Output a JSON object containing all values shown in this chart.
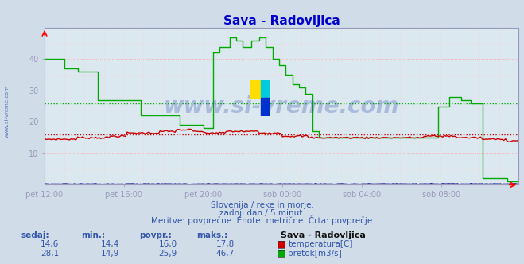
{
  "title": "Sava - Radovljica",
  "title_color": "#0000cc",
  "bg_color": "#d0dce8",
  "plot_bg_color": "#dce8f0",
  "grid_color_h": "#ffaaaa",
  "grid_color_v": "#ffcccc",
  "watermark": "www.si-vreme.com",
  "watermark_color": "#3355aa",
  "subtitle1": "Slovenija / reke in morje.",
  "subtitle2": "zadnji dan / 5 minut.",
  "subtitle3": "Meritve: povprečne  Enote: metrične  Črta: povprečje",
  "text_color": "#3355aa",
  "ylim": [
    0,
    50
  ],
  "yticks": [
    10,
    20,
    30,
    40
  ],
  "xtick_labels": [
    "pet 12:00",
    "pet 16:00",
    "pet 20:00",
    "sob 00:00",
    "sob 04:00",
    "sob 08:00"
  ],
  "x_tick_idx": [
    0,
    48,
    96,
    144,
    192,
    240
  ],
  "total_points": 288,
  "temp_avg": 16.0,
  "temp_color": "#cc0000",
  "flow_avg": 25.9,
  "flow_color": "#00aa00",
  "height_color": "#000088",
  "axis_color": "#9999bb",
  "legend_header": "Sava - Radovljica",
  "legend_label1": "temperatura[C]",
  "legend_label2": "pretok[m3/s]",
  "legend_color1": "#cc0000",
  "legend_color2": "#00aa00",
  "legend_cols": [
    "sedaj:",
    "min.:",
    "povpr.:",
    "maks.:"
  ],
  "temp_vals": [
    "14,6",
    "14,4",
    "16,0",
    "17,8"
  ],
  "flow_vals": [
    "28,1",
    "14,9",
    "25,9",
    "46,7"
  ],
  "left_label": "www.si-vreme.com"
}
